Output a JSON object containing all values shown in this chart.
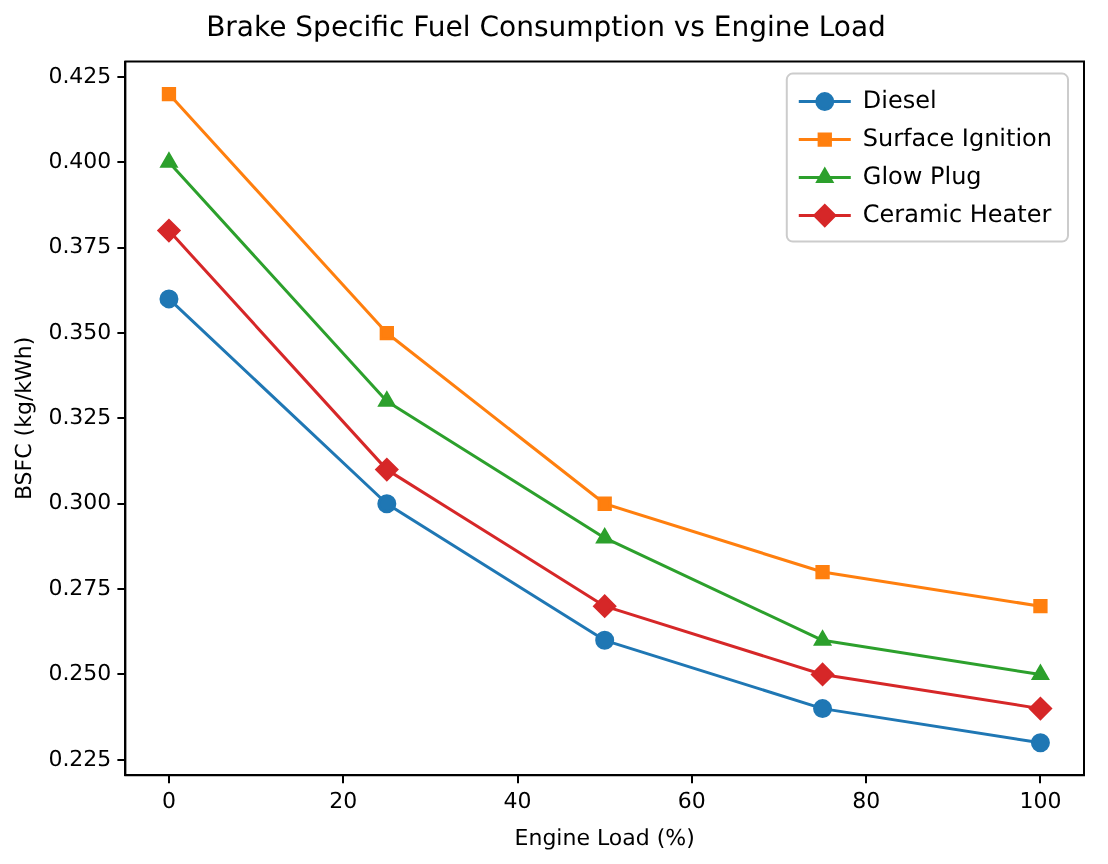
{
  "chart_data": {
    "type": "line",
    "title": "Brake Specific Fuel Consumption vs Engine Load",
    "xlabel": "Engine Load (%)",
    "ylabel": "BSFC (kg/kWh)",
    "x": [
      0,
      25,
      50,
      75,
      100
    ],
    "series": [
      {
        "name": "Diesel",
        "color": "#1f77b4",
        "marker": "circle",
        "values": [
          0.36,
          0.3,
          0.26,
          0.24,
          0.23
        ]
      },
      {
        "name": "Surface Ignition",
        "color": "#ff7f0e",
        "marker": "square",
        "values": [
          0.42,
          0.35,
          0.3,
          0.28,
          0.27
        ]
      },
      {
        "name": "Glow Plug",
        "color": "#2ca02c",
        "marker": "triangle",
        "values": [
          0.4,
          0.33,
          0.29,
          0.26,
          0.25
        ]
      },
      {
        "name": "Ceramic Heater",
        "color": "#d62728",
        "marker": "diamond",
        "values": [
          0.38,
          0.31,
          0.27,
          0.25,
          0.24
        ]
      }
    ],
    "xlim": [
      -5,
      105
    ],
    "xticks": [
      0,
      20,
      40,
      60,
      80,
      100
    ],
    "ylim": [
      0.2205,
      0.4295
    ],
    "yticks": [
      {
        "value": 0.225,
        "label": "0.225"
      },
      {
        "value": 0.25,
        "label": "0.250"
      },
      {
        "value": 0.275,
        "label": "0.275"
      },
      {
        "value": 0.3,
        "label": "0.300"
      },
      {
        "value": 0.325,
        "label": "0.325"
      },
      {
        "value": 0.35,
        "label": "0.350"
      },
      {
        "value": 0.375,
        "label": "0.375"
      },
      {
        "value": 0.4,
        "label": "0.400"
      },
      {
        "value": 0.425,
        "label": "0.425"
      }
    ],
    "grid": false,
    "legend": "top right",
    "line_style": "solid"
  }
}
